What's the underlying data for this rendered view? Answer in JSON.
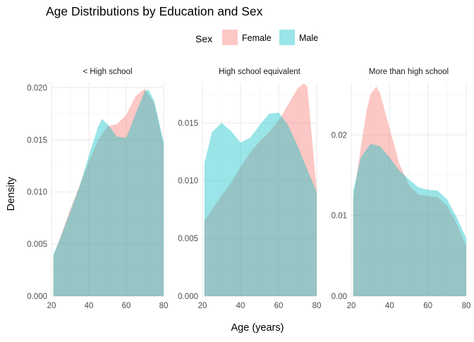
{
  "chart_data": {
    "type": "area",
    "title": "Age Distributions by Education and Sex",
    "xlabel": "Age (years)",
    "ylabel": "Density",
    "legend": {
      "title": "Sex",
      "position": "top",
      "entries": [
        {
          "name": "Female",
          "color": "#F8766D"
        },
        {
          "name": "Male",
          "color": "#00BFC4"
        }
      ]
    },
    "grid": true,
    "xlim": [
      20,
      80
    ],
    "x_ticks": [
      20,
      40,
      60,
      80
    ],
    "panels": [
      {
        "title": "< High school",
        "ylim": [
          0,
          0.0205
        ],
        "y_ticks": [
          0,
          0.005,
          0.01,
          0.015,
          0.02
        ],
        "y_tick_labels": [
          "0.000",
          "0.005",
          "0.010",
          "0.015",
          "0.020"
        ],
        "series": [
          {
            "name": "Female",
            "color": "#F8766D",
            "x": [
              21,
              25,
              30,
              35,
              40,
              45,
              50,
              55,
              60,
              65,
              70,
              75,
              80
            ],
            "y": [
              0.0038,
              0.0058,
              0.0083,
              0.0106,
              0.0129,
              0.015,
              0.0163,
              0.0165,
              0.0174,
              0.0192,
              0.0199,
              0.0185,
              0.0145
            ]
          },
          {
            "name": "Male",
            "color": "#00BFC4",
            "x": [
              21,
              25,
              30,
              35,
              40,
              45,
              47,
              50,
              55,
              60,
              65,
              70,
              72,
              75,
              80
            ],
            "y": [
              0.004,
              0.0057,
              0.0081,
              0.0105,
              0.0135,
              0.0163,
              0.017,
              0.0165,
              0.0153,
              0.0152,
              0.0175,
              0.0197,
              0.0198,
              0.0187,
              0.0148
            ]
          }
        ]
      },
      {
        "title": "High school equivalent",
        "ylim": [
          0,
          0.0185
        ],
        "y_ticks": [
          0,
          0.005,
          0.01,
          0.015
        ],
        "y_tick_labels": [
          "0.000",
          "0.005",
          "0.010",
          "0.015"
        ],
        "series": [
          {
            "name": "Female",
            "color": "#F8766D",
            "x": [
              21,
              25,
              30,
              35,
              40,
              45,
              50,
              55,
              60,
              65,
              70,
              73,
              75,
              80
            ],
            "y": [
              0.0065,
              0.0075,
              0.0087,
              0.0098,
              0.0112,
              0.0124,
              0.0134,
              0.0142,
              0.0152,
              0.0166,
              0.018,
              0.0184,
              0.0182,
              0.0092
            ]
          },
          {
            "name": "Male",
            "color": "#00BFC4",
            "x": [
              21,
              25,
              30,
              35,
              40,
              45,
              50,
              55,
              60,
              65,
              70,
              75,
              80
            ],
            "y": [
              0.0115,
              0.0142,
              0.015,
              0.0143,
              0.0133,
              0.0137,
              0.0148,
              0.0158,
              0.0159,
              0.0148,
              0.013,
              0.011,
              0.009
            ]
          }
        ]
      },
      {
        "title": "More than high school",
        "ylim": [
          0,
          0.0265
        ],
        "y_ticks": [
          0,
          0.01,
          0.02
        ],
        "y_tick_labels": [
          "0.00",
          "0.01",
          "0.02"
        ],
        "series": [
          {
            "name": "Female",
            "color": "#F8766D",
            "x": [
              21,
              25,
              28,
              30,
              33,
              35,
              40,
              45,
              50,
              55,
              60,
              65,
              70,
              75,
              80
            ],
            "y": [
              0.012,
              0.0185,
              0.023,
              0.025,
              0.026,
              0.0252,
              0.0208,
              0.0165,
              0.0138,
              0.0126,
              0.0124,
              0.0123,
              0.0112,
              0.009,
              0.0062
            ]
          },
          {
            "name": "Male",
            "color": "#00BFC4",
            "x": [
              21,
              25,
              30,
              35,
              40,
              45,
              50,
              55,
              60,
              65,
              70,
              75,
              80
            ],
            "y": [
              0.013,
              0.0172,
              0.0189,
              0.0186,
              0.0172,
              0.0156,
              0.0145,
              0.0135,
              0.0132,
              0.0131,
              0.012,
              0.0098,
              0.0072
            ]
          }
        ]
      }
    ]
  }
}
